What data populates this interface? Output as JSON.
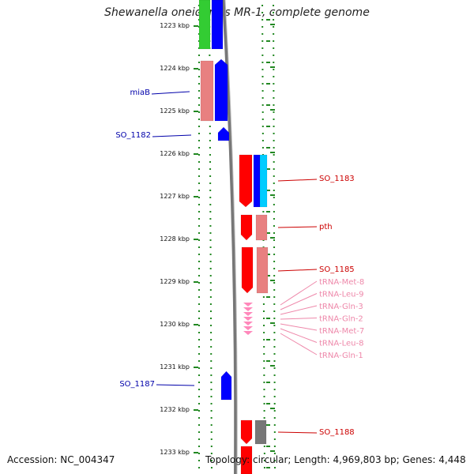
{
  "title": "Shewanella oneidensis MR-1, complete genome",
  "footer": {
    "accession": "Accession: NC_004347",
    "topology": "Topology: circular; Length: 4,969,803 bp; Genes: 4,448"
  },
  "colors": {
    "blue": "#0000ff",
    "red": "#ff0000",
    "salmon": "#e88080",
    "green": "#33cc33",
    "cyan": "#00ccff",
    "pink": "#ff88bb",
    "gray": "#777777",
    "dot_green": "#228822",
    "label_blue": "#0000aa",
    "label_red": "#cc0000",
    "label_pink": "#ee88aa"
  },
  "ticks": [
    "1223 kbp",
    "1224 kbp",
    "1225 kbp",
    "1226 kbp",
    "1227 kbp",
    "1228 kbp",
    "1229 kbp",
    "1230 kbp",
    "1231 kbp",
    "1232 kbp",
    "1233 kbp"
  ],
  "left_labels": [
    {
      "name": "miaB",
      "color": "label_blue"
    },
    {
      "name": "SO_1182",
      "color": "label_blue"
    },
    {
      "name": "SO_1187",
      "color": "label_blue"
    }
  ],
  "right_labels": [
    {
      "name": "SO_1183",
      "color": "label_red"
    },
    {
      "name": "pth",
      "color": "label_red"
    },
    {
      "name": "SO_1185",
      "color": "label_red"
    },
    {
      "name": "SO_1188",
      "color": "label_red"
    }
  ],
  "trna_labels": [
    "tRNA-Met-8",
    "tRNA-Leu-9",
    "tRNA-Gln-3",
    "tRNA-Gln-2",
    "tRNA-Met-7",
    "tRNA-Leu-8",
    "tRNA-Gln-1"
  ]
}
